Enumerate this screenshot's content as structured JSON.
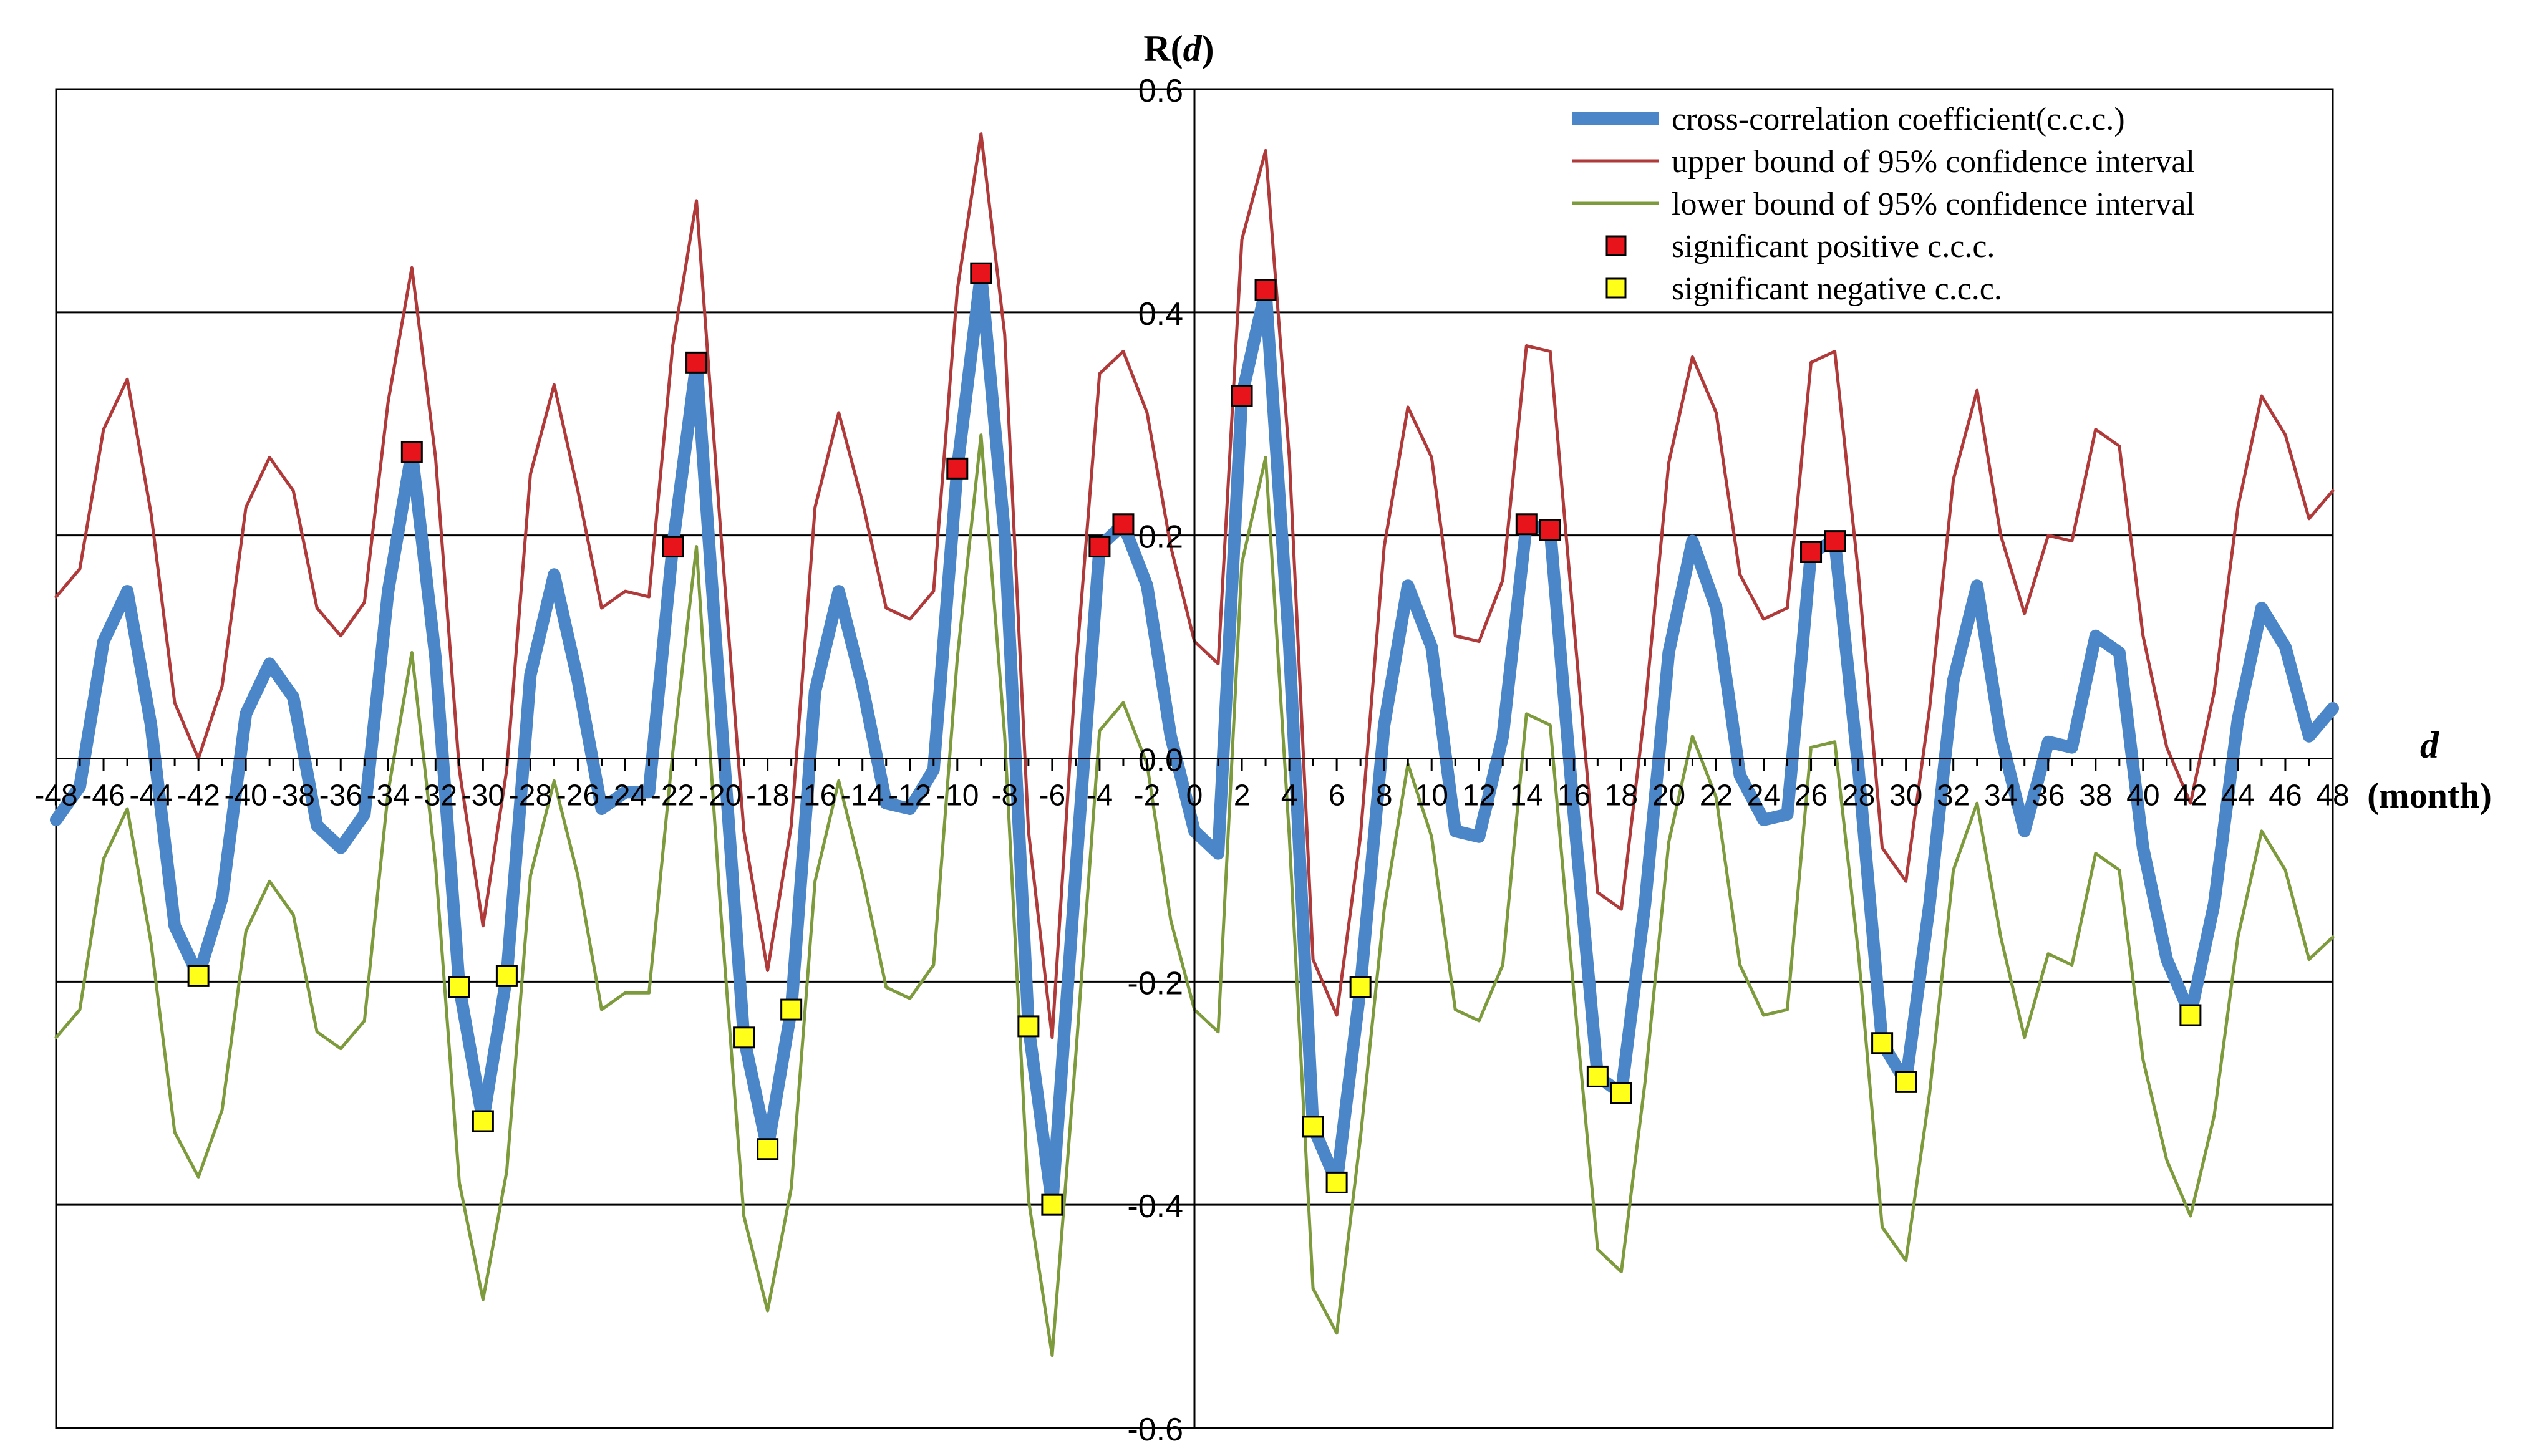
{
  "chart_data": {
    "type": "line",
    "title": "",
    "ylabel_prefix": "R(",
    "ylabel_var": "d",
    "ylabel_suffix": ")",
    "xlabel_var": "d",
    "xlabel_unit": "(month)",
    "xlim": [
      -48,
      48
    ],
    "ylim": [
      -0.6,
      0.6
    ],
    "y_ticks": [
      -0.6,
      -0.4,
      -0.2,
      0.0,
      0.2,
      0.4,
      0.6
    ],
    "y_tick_labels": [
      "-0.6",
      "-0.4",
      "-0.2",
      "0.0",
      "0.2",
      "0.4",
      "0.6"
    ],
    "x_tick_labels": [
      "-48",
      "-46",
      "-44",
      "-42",
      "-40",
      "-38",
      "-36",
      "-34",
      "-32",
      "-30",
      "-28",
      "-26",
      "-24",
      "-22",
      "-20",
      "-18",
      "-16",
      "-14",
      "-12",
      "-10",
      "-8",
      "-6",
      "-4",
      "-2",
      "0",
      "2",
      "4",
      "6",
      "8",
      "10",
      "12",
      "14",
      "16",
      "18",
      "20",
      "22",
      "24",
      "26",
      "28",
      "30",
      "32",
      "34",
      "36",
      "38",
      "40",
      "42",
      "44",
      "46",
      "48"
    ],
    "grid": "horizontal",
    "legend_position": "top-right",
    "x": [
      -48,
      -47,
      -46,
      -45,
      -44,
      -43,
      -42,
      -41,
      -40,
      -39,
      -38,
      -37,
      -36,
      -35,
      -34,
      -33,
      -32,
      -31,
      -30,
      -29,
      -28,
      -27,
      -26,
      -25,
      -24,
      -23,
      -22,
      -21,
      -20,
      -19,
      -18,
      -17,
      -16,
      -15,
      -14,
      -13,
      -12,
      -11,
      -10,
      -9,
      -8,
      -7,
      -6,
      -5,
      -4,
      -3,
      -2,
      -1,
      0,
      1,
      2,
      3,
      4,
      5,
      6,
      7,
      8,
      9,
      10,
      11,
      12,
      13,
      14,
      15,
      16,
      17,
      18,
      19,
      20,
      21,
      22,
      23,
      24,
      25,
      26,
      27,
      28,
      29,
      30,
      31,
      32,
      33,
      34,
      35,
      36,
      37,
      38,
      39,
      40,
      41,
      42,
      43,
      44,
      45,
      46,
      47,
      48
    ],
    "series": [
      {
        "name": "cross-correlation coefficient(c.c.c.)",
        "color": "#4a86c8",
        "values": [
          -0.055,
          -0.025,
          0.105,
          0.15,
          0.03,
          -0.15,
          -0.195,
          -0.125,
          0.04,
          0.085,
          0.055,
          -0.06,
          -0.08,
          -0.05,
          0.15,
          0.275,
          0.09,
          -0.205,
          -0.325,
          -0.195,
          0.075,
          0.165,
          0.07,
          -0.045,
          -0.03,
          -0.03,
          0.19,
          0.355,
          0.05,
          -0.25,
          -0.35,
          -0.225,
          0.06,
          0.15,
          0.065,
          -0.04,
          -0.045,
          -0.01,
          0.26,
          0.435,
          0.2,
          -0.24,
          -0.4,
          -0.1,
          0.19,
          0.21,
          0.155,
          0.02,
          -0.065,
          -0.085,
          0.325,
          0.42,
          0.1,
          -0.33,
          -0.38,
          -0.205,
          0.03,
          0.155,
          0.1,
          -0.065,
          -0.07,
          0.02,
          0.21,
          0.205,
          -0.05,
          -0.285,
          -0.3,
          -0.13,
          0.095,
          0.195,
          0.135,
          -0.015,
          -0.055,
          -0.05,
          0.185,
          0.195,
          -0.01,
          -0.255,
          -0.29,
          -0.13,
          0.07,
          0.155,
          0.02,
          -0.065,
          0.015,
          0.01,
          0.11,
          0.095,
          -0.08,
          -0.18,
          -0.23,
          -0.13,
          0.035,
          0.135,
          0.1,
          0.02,
          0.045
        ]
      },
      {
        "name": "upper bound of 95% confidence interval",
        "color": "#b0393a",
        "values": [
          0.145,
          0.17,
          0.295,
          0.34,
          0.22,
          0.05,
          0.0,
          0.065,
          0.225,
          0.27,
          0.24,
          0.135,
          0.11,
          0.14,
          0.32,
          0.44,
          0.27,
          -0.01,
          -0.15,
          -0.01,
          0.255,
          0.335,
          0.24,
          0.135,
          0.15,
          0.145,
          0.37,
          0.5,
          0.21,
          -0.065,
          -0.19,
          -0.06,
          0.225,
          0.31,
          0.23,
          0.135,
          0.125,
          0.15,
          0.42,
          0.56,
          0.38,
          -0.065,
          -0.25,
          0.08,
          0.345,
          0.365,
          0.31,
          0.19,
          0.105,
          0.085,
          0.465,
          0.545,
          0.27,
          -0.18,
          -0.23,
          -0.07,
          0.19,
          0.315,
          0.27,
          0.11,
          0.105,
          0.16,
          0.37,
          0.365,
          0.12,
          -0.12,
          -0.135,
          0.045,
          0.265,
          0.36,
          0.31,
          0.165,
          0.125,
          0.135,
          0.355,
          0.365,
          0.165,
          -0.08,
          -0.11,
          0.045,
          0.25,
          0.33,
          0.2,
          0.13,
          0.2,
          0.195,
          0.295,
          0.28,
          0.11,
          0.01,
          -0.04,
          0.06,
          0.225,
          0.325,
          0.29,
          0.215,
          0.24
        ]
      },
      {
        "name": "lower bound of 95% confidence interval",
        "color": "#7d9b3c",
        "values": [
          -0.25,
          -0.225,
          -0.09,
          -0.045,
          -0.165,
          -0.335,
          -0.375,
          -0.315,
          -0.155,
          -0.11,
          -0.14,
          -0.245,
          -0.26,
          -0.235,
          -0.03,
          0.095,
          -0.095,
          -0.38,
          -0.485,
          -0.37,
          -0.105,
          -0.02,
          -0.105,
          -0.225,
          -0.21,
          -0.21,
          0.005,
          0.19,
          -0.13,
          -0.41,
          -0.495,
          -0.385,
          -0.11,
          -0.02,
          -0.105,
          -0.205,
          -0.215,
          -0.185,
          0.09,
          0.29,
          0.02,
          -0.395,
          -0.535,
          -0.265,
          0.025,
          0.05,
          -0.005,
          -0.145,
          -0.225,
          -0.245,
          0.175,
          0.27,
          -0.07,
          -0.475,
          -0.515,
          -0.34,
          -0.135,
          -0.005,
          -0.07,
          -0.225,
          -0.235,
          -0.185,
          0.04,
          0.03,
          -0.21,
          -0.44,
          -0.46,
          -0.29,
          -0.075,
          0.02,
          -0.035,
          -0.185,
          -0.23,
          -0.225,
          0.01,
          0.015,
          -0.175,
          -0.42,
          -0.45,
          -0.3,
          -0.1,
          -0.04,
          -0.16,
          -0.25,
          -0.175,
          -0.185,
          -0.085,
          -0.1,
          -0.27,
          -0.36,
          -0.41,
          -0.32,
          -0.16,
          -0.065,
          -0.1,
          -0.18,
          -0.16
        ]
      }
    ],
    "markers": [
      {
        "name": "significant positive c.c.c.",
        "color": "#e8141b",
        "points": [
          [
            -33,
            0.275
          ],
          [
            -22,
            0.19
          ],
          [
            -21,
            0.355
          ],
          [
            -10,
            0.26
          ],
          [
            -9,
            0.435
          ],
          [
            -4,
            0.19
          ],
          [
            -3,
            0.21
          ],
          [
            2,
            0.325
          ],
          [
            3,
            0.42
          ],
          [
            14,
            0.21
          ],
          [
            15,
            0.205
          ],
          [
            26,
            0.185
          ],
          [
            27,
            0.195
          ]
        ]
      },
      {
        "name": "significant negative c.c.c.",
        "color": "#ffff1a",
        "points": [
          [
            -42,
            -0.195
          ],
          [
            -31,
            -0.205
          ],
          [
            -30,
            -0.325
          ],
          [
            -29,
            -0.195
          ],
          [
            -19,
            -0.25
          ],
          [
            -18,
            -0.35
          ],
          [
            -17,
            -0.225
          ],
          [
            -7,
            -0.24
          ],
          [
            -6,
            -0.4
          ],
          [
            5,
            -0.33
          ],
          [
            6,
            -0.38
          ],
          [
            7,
            -0.205
          ],
          [
            17,
            -0.285
          ],
          [
            18,
            -0.3
          ],
          [
            29,
            -0.255
          ],
          [
            30,
            -0.29
          ],
          [
            42,
            -0.23
          ]
        ]
      }
    ]
  }
}
